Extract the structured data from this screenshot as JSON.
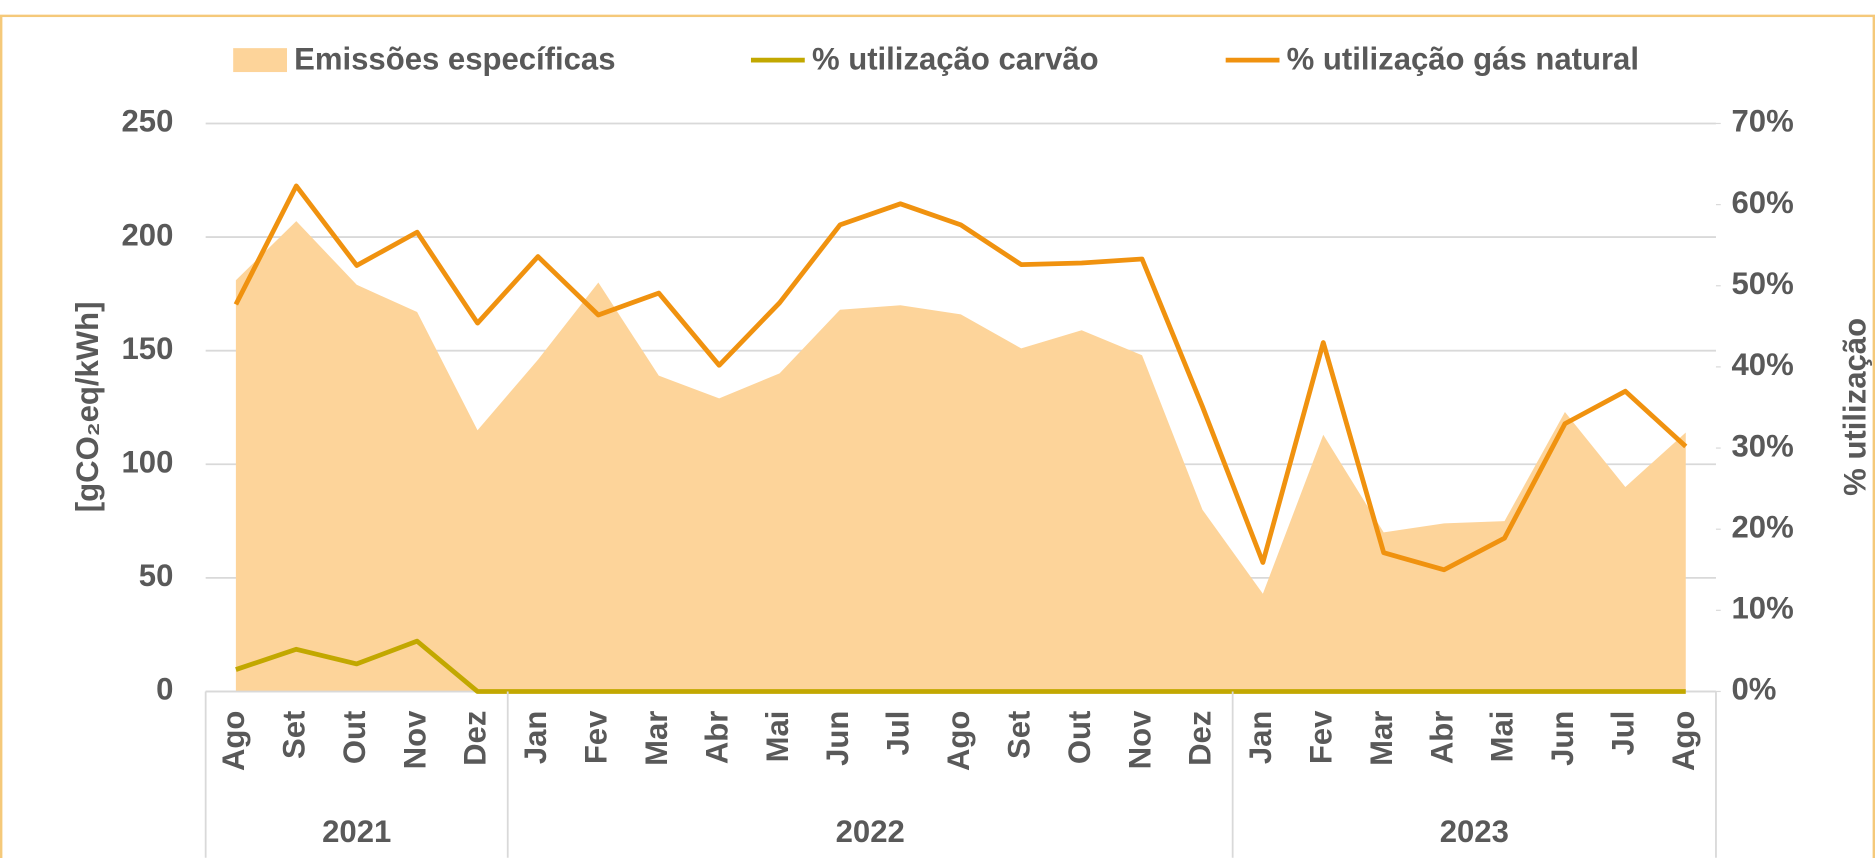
{
  "chart_data": {
    "type": "combo",
    "categories": [
      "Ago",
      "Set",
      "Out",
      "Nov",
      "Dez",
      "Jan",
      "Fev",
      "Mar",
      "Abr",
      "Mai",
      "Jun",
      "Jul",
      "Ago",
      "Set",
      "Out",
      "Nov",
      "Dez",
      "Jan",
      "Fev",
      "Mar",
      "Abr",
      "Mai",
      "Jun",
      "Jul",
      "Ago"
    ],
    "category_groups": [
      {
        "label": "2021",
        "span": 5
      },
      {
        "label": "2022",
        "span": 12
      },
      {
        "label": "2023",
        "span": 8
      }
    ],
    "series": [
      {
        "name": "Emissões específicas",
        "type": "area",
        "axis": "y",
        "color": "#fdd49a",
        "values": [
          181,
          207,
          179,
          167,
          115,
          146,
          180,
          139,
          129,
          140,
          168,
          170,
          166,
          151,
          159,
          148,
          80,
          43,
          113,
          70,
          74,
          75,
          123,
          90,
          114
        ]
      },
      {
        "name": "% utilização carvão",
        "type": "line",
        "axis": "y2",
        "color": "#c2a800",
        "values": [
          2.7,
          5.2,
          3.4,
          6.2,
          0,
          0,
          0,
          0,
          0,
          0,
          0,
          0,
          0,
          0,
          0,
          0,
          0,
          0,
          0,
          0,
          0,
          0,
          0,
          0,
          0
        ]
      },
      {
        "name": "% utilização gás natural",
        "type": "line",
        "axis": "y2",
        "color": "#f0920f",
        "values": [
          47.7,
          62.3,
          52.5,
          56.6,
          45.4,
          53.6,
          46.4,
          49.1,
          40.2,
          47.9,
          57.5,
          60.1,
          57.5,
          52.6,
          52.8,
          53.3,
          35.1,
          15.9,
          43.0,
          17.1,
          15.0,
          18.9,
          33.0,
          37.0,
          30.2
        ]
      }
    ],
    "ylabel": "[gCO₂eq/kWh]",
    "y2label": "% utilização",
    "ylim": [
      0,
      250
    ],
    "yticks": [
      0,
      50,
      100,
      150,
      200,
      250
    ],
    "y2lim": [
      0,
      70
    ],
    "y2ticks": [
      {
        "value": 0,
        "label": "0%"
      },
      {
        "value": 10,
        "label": "10%"
      },
      {
        "value": 20,
        "label": "20%"
      },
      {
        "value": 30,
        "label": "30%"
      },
      {
        "value": 40,
        "label": "40%"
      },
      {
        "value": 50,
        "label": "50%"
      },
      {
        "value": 60,
        "label": "60%"
      },
      {
        "value": 70,
        "label": "70%"
      }
    ],
    "grid": true,
    "legend": "top"
  }
}
